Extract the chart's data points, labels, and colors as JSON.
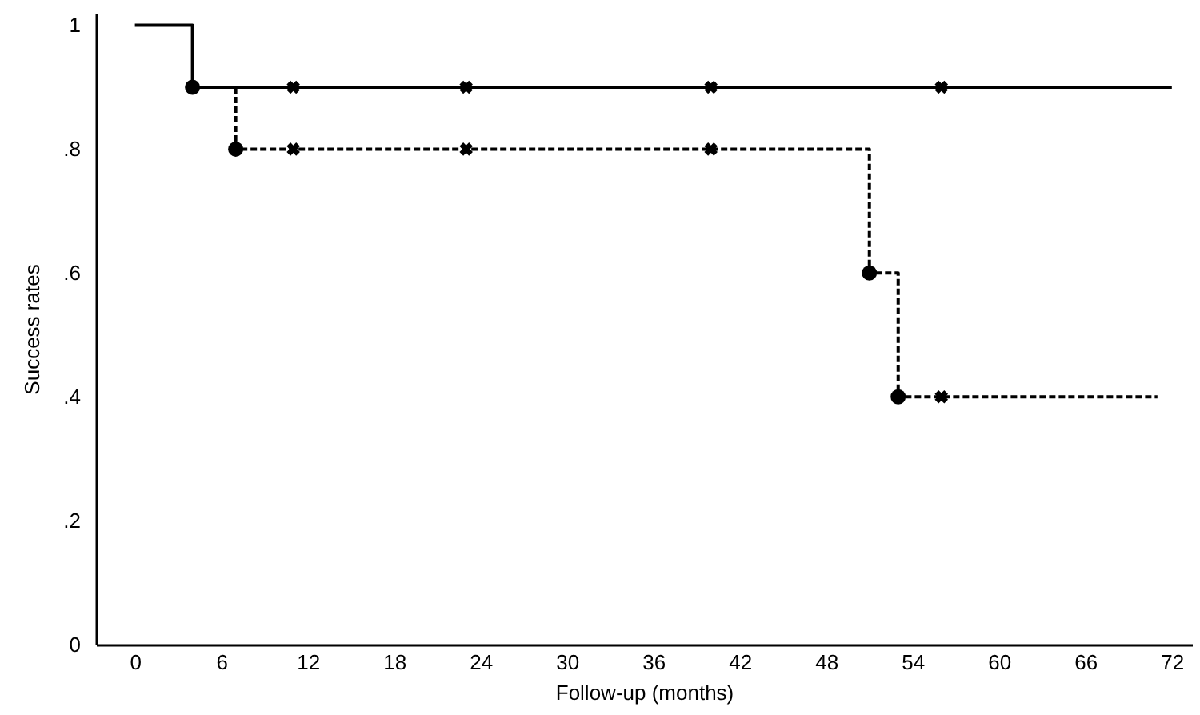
{
  "chart_data": {
    "type": "step",
    "xlabel": "Follow-up (months)",
    "ylabel": "Success rates",
    "xlim": [
      -2.7,
      73.4
    ],
    "xticks": [
      0,
      6,
      12,
      18,
      24,
      30,
      36,
      42,
      48,
      54,
      60,
      66,
      72
    ],
    "ylim": [
      0,
      1.02
    ],
    "yticks": [
      {
        "value": 0,
        "label": "0"
      },
      {
        "value": 0.2,
        "label": ".2"
      },
      {
        "value": 0.4,
        "label": ".4"
      },
      {
        "value": 0.6,
        "label": ".6"
      },
      {
        "value": 0.8,
        "label": ".8"
      },
      {
        "value": 1,
        "label": "1"
      }
    ],
    "grid": false,
    "series": [
      {
        "color": "#000000",
        "line_style": "solid",
        "x": [
          0,
          4,
          72
        ],
        "values": [
          1,
          0.9,
          0.9
        ]
      },
      {
        "color": "#000000",
        "line_style": "dashed",
        "x": [
          7,
          7,
          51,
          53,
          71
        ],
        "values": [
          0.9,
          0.8,
          0.6,
          0.4,
          0.4
        ]
      },
      {
        "type": "scatter",
        "color": "#000000",
        "marker": "circle",
        "x": [
          4,
          7,
          51,
          53
        ],
        "values": [
          0.9,
          0.8,
          0.6,
          0.4
        ]
      },
      {
        "type": "scatter",
        "color": "#000000",
        "marker": "cross",
        "x": [
          11,
          23,
          40,
          56,
          11,
          23,
          40,
          56
        ],
        "values": [
          0.9,
          0.9,
          0.9,
          0.9,
          0.8,
          0.8,
          0.8,
          0.4
        ]
      }
    ]
  }
}
